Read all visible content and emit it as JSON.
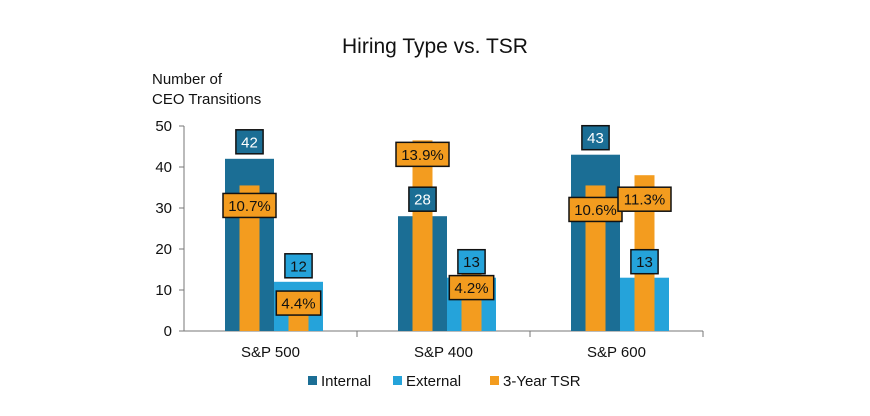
{
  "chart_data": {
    "type": "bar",
    "title": "Hiring Type vs. TSR",
    "ylabel_lines": [
      "Number of",
      "CEO Transitions"
    ],
    "ylim": [
      0,
      50
    ],
    "yticks": [
      0,
      10,
      20,
      30,
      40,
      50
    ],
    "categories": [
      "S&P 500",
      "S&P 400",
      "S&P 600"
    ],
    "series": [
      {
        "name": "Internal",
        "color": "#1B6E95",
        "values": [
          42,
          28,
          43
        ],
        "labels": [
          "42",
          "28",
          "43"
        ]
      },
      {
        "name": "External",
        "color": "#25A3DA",
        "values": [
          12,
          13,
          13
        ],
        "labels": [
          "12",
          "13",
          "13"
        ]
      }
    ],
    "tsr_series": {
      "name": "3-Year TSR",
      "color": "#F39C1F",
      "overlay_bar_values": [
        [
          35.5,
          7.3
        ],
        [
          46.5,
          14
        ],
        [
          35.5,
          38
        ]
      ],
      "labels": [
        [
          "10.7%",
          "4.4%"
        ],
        [
          "13.9%",
          "4.2%"
        ],
        [
          "10.6%",
          "11.3%"
        ]
      ]
    },
    "legend": [
      "Internal",
      "External",
      "3-Year TSR"
    ]
  }
}
